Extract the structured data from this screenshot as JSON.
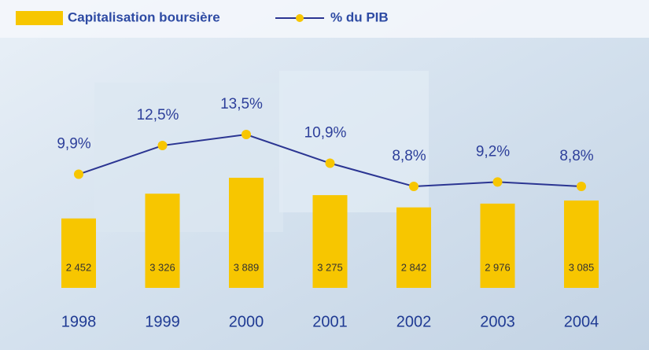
{
  "chart_data": {
    "type": "combo",
    "categories": [
      "1998",
      "1999",
      "2000",
      "2001",
      "2002",
      "2003",
      "2004"
    ],
    "series": [
      {
        "name": "Capitalisation boursière",
        "type": "bar",
        "color": "#f7c600",
        "values": [
          2452,
          3326,
          3889,
          3275,
          2842,
          2976,
          3085
        ],
        "value_labels": [
          "2 452",
          "3 326",
          "3 889",
          "3 275",
          "2 842",
          "2 976",
          "3 085"
        ]
      },
      {
        "name": "% du PIB",
        "type": "line",
        "color": "#2b3592",
        "marker_color": "#f7c600",
        "values": [
          9.9,
          12.5,
          13.5,
          10.9,
          8.8,
          9.2,
          8.8
        ],
        "value_labels": [
          "9,9%",
          "12,5%",
          "13,5%",
          "10,9%",
          "8,8%",
          "9,2%",
          "8,8%"
        ]
      }
    ],
    "legend": "top-left"
  }
}
